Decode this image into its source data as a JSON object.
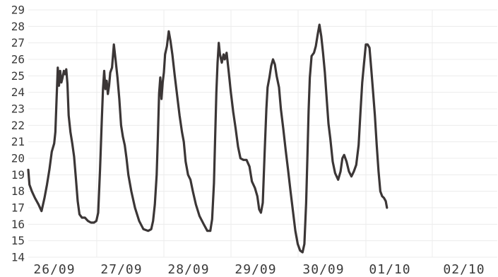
{
  "chart_data": {
    "type": "line",
    "title": "",
    "xlabel": "",
    "ylabel": "",
    "ylim": [
      14,
      29
    ],
    "yticks": [
      14,
      15,
      16,
      17,
      18,
      19,
      20,
      21,
      22,
      23,
      24,
      25,
      26,
      27,
      28,
      29
    ],
    "xticks": [
      "26/09",
      "27/09",
      "28/09",
      "29/09",
      "30/09",
      "01/10",
      "02/10"
    ],
    "xlim_days": [
      -0.39,
      7.39
    ],
    "grid": true,
    "color": "#3b3636",
    "series": [
      {
        "name": "",
        "points": [
          [
            -0.39,
            19.3
          ],
          [
            -0.37,
            18.4
          ],
          [
            -0.33,
            18.0
          ],
          [
            -0.28,
            17.6
          ],
          [
            -0.22,
            17.2
          ],
          [
            -0.17,
            16.8
          ],
          [
            -0.12,
            17.6
          ],
          [
            -0.08,
            18.4
          ],
          [
            -0.04,
            19.3
          ],
          [
            0.0,
            20.4
          ],
          [
            0.04,
            20.9
          ],
          [
            0.06,
            21.6
          ],
          [
            0.08,
            23.6
          ],
          [
            0.1,
            25.5
          ],
          [
            0.12,
            24.4
          ],
          [
            0.14,
            25.3
          ],
          [
            0.16,
            24.6
          ],
          [
            0.18,
            24.9
          ],
          [
            0.2,
            25.3
          ],
          [
            0.22,
            25.1
          ],
          [
            0.24,
            25.4
          ],
          [
            0.26,
            24.5
          ],
          [
            0.28,
            22.6
          ],
          [
            0.31,
            21.6
          ],
          [
            0.34,
            20.9
          ],
          [
            0.37,
            20.1
          ],
          [
            0.4,
            18.8
          ],
          [
            0.43,
            17.4
          ],
          [
            0.46,
            16.6
          ],
          [
            0.5,
            16.4
          ],
          [
            0.55,
            16.4
          ],
          [
            0.6,
            16.2
          ],
          [
            0.65,
            16.1
          ],
          [
            0.7,
            16.1
          ],
          [
            0.74,
            16.2
          ],
          [
            0.77,
            16.7
          ],
          [
            0.8,
            19.3
          ],
          [
            0.83,
            22.3
          ],
          [
            0.85,
            24.2
          ],
          [
            0.87,
            25.3
          ],
          [
            0.89,
            24.2
          ],
          [
            0.91,
            24.7
          ],
          [
            0.93,
            23.9
          ],
          [
            0.95,
            24.4
          ],
          [
            0.97,
            25.2
          ],
          [
            1.0,
            25.5
          ],
          [
            1.03,
            26.9
          ],
          [
            1.06,
            25.9
          ],
          [
            1.09,
            24.9
          ],
          [
            1.12,
            23.6
          ],
          [
            1.15,
            22.0
          ],
          [
            1.18,
            21.3
          ],
          [
            1.21,
            20.8
          ],
          [
            1.24,
            20.0
          ],
          [
            1.27,
            19.0
          ],
          [
            1.32,
            18.0
          ],
          [
            1.38,
            17.0
          ],
          [
            1.45,
            16.2
          ],
          [
            1.52,
            15.7
          ],
          [
            1.6,
            15.6
          ],
          [
            1.65,
            15.7
          ],
          [
            1.68,
            16.2
          ],
          [
            1.71,
            17.2
          ],
          [
            1.74,
            19.0
          ],
          [
            1.76,
            21.3
          ],
          [
            1.78,
            23.9
          ],
          [
            1.8,
            24.9
          ],
          [
            1.82,
            23.6
          ],
          [
            1.84,
            24.6
          ],
          [
            1.86,
            25.2
          ],
          [
            1.88,
            26.3
          ],
          [
            1.91,
            26.8
          ],
          [
            1.94,
            27.7
          ],
          [
            1.97,
            27.1
          ],
          [
            2.0,
            26.3
          ],
          [
            2.04,
            25.0
          ],
          [
            2.08,
            23.8
          ],
          [
            2.12,
            22.6
          ],
          [
            2.16,
            21.6
          ],
          [
            2.19,
            21.0
          ],
          [
            2.22,
            19.8
          ],
          [
            2.26,
            19.0
          ],
          [
            2.3,
            18.7
          ],
          [
            2.34,
            18.0
          ],
          [
            2.39,
            17.2
          ],
          [
            2.45,
            16.5
          ],
          [
            2.52,
            16.0
          ],
          [
            2.58,
            15.6
          ],
          [
            2.63,
            15.6
          ],
          [
            2.66,
            16.3
          ],
          [
            2.69,
            18.5
          ],
          [
            2.71,
            21.3
          ],
          [
            2.73,
            24.0
          ],
          [
            2.75,
            25.8
          ],
          [
            2.77,
            27.0
          ],
          [
            2.79,
            26.3
          ],
          [
            2.82,
            25.8
          ],
          [
            2.85,
            26.3
          ],
          [
            2.87,
            26.0
          ],
          [
            2.9,
            26.4
          ],
          [
            2.93,
            25.4
          ],
          [
            2.97,
            24.0
          ],
          [
            3.01,
            22.8
          ],
          [
            3.05,
            21.8
          ],
          [
            3.09,
            20.7
          ],
          [
            3.13,
            20.0
          ],
          [
            3.18,
            19.9
          ],
          [
            3.23,
            19.9
          ],
          [
            3.28,
            19.5
          ],
          [
            3.32,
            18.6
          ],
          [
            3.37,
            18.2
          ],
          [
            3.41,
            17.7
          ],
          [
            3.44,
            16.9
          ],
          [
            3.47,
            16.7
          ],
          [
            3.5,
            17.3
          ],
          [
            3.53,
            20.3
          ],
          [
            3.56,
            23.0
          ],
          [
            3.58,
            24.3
          ],
          [
            3.61,
            24.9
          ],
          [
            3.64,
            25.6
          ],
          [
            3.67,
            26.0
          ],
          [
            3.7,
            25.7
          ],
          [
            3.73,
            25.0
          ],
          [
            3.77,
            24.3
          ],
          [
            3.8,
            23.0
          ],
          [
            3.84,
            21.8
          ],
          [
            3.88,
            20.5
          ],
          [
            3.92,
            19.3
          ],
          [
            3.96,
            18.0
          ],
          [
            4.0,
            16.8
          ],
          [
            4.04,
            15.6
          ],
          [
            4.08,
            14.8
          ],
          [
            4.12,
            14.4
          ],
          [
            4.16,
            14.3
          ],
          [
            4.19,
            14.8
          ],
          [
            4.22,
            17.3
          ],
          [
            4.24,
            20.1
          ],
          [
            4.26,
            22.9
          ],
          [
            4.28,
            24.9
          ],
          [
            4.31,
            26.2
          ],
          [
            4.35,
            26.4
          ],
          [
            4.38,
            26.8
          ],
          [
            4.41,
            27.5
          ],
          [
            4.44,
            28.1
          ],
          [
            4.47,
            27.4
          ],
          [
            4.5,
            26.4
          ],
          [
            4.53,
            25.2
          ],
          [
            4.56,
            23.6
          ],
          [
            4.59,
            22.1
          ],
          [
            4.62,
            21.2
          ],
          [
            4.66,
            19.8
          ],
          [
            4.7,
            19.1
          ],
          [
            4.75,
            18.7
          ],
          [
            4.79,
            19.2
          ],
          [
            4.82,
            20.0
          ],
          [
            4.85,
            20.2
          ],
          [
            4.89,
            19.8
          ],
          [
            4.93,
            19.2
          ],
          [
            4.97,
            18.9
          ],
          [
            5.01,
            19.2
          ],
          [
            5.05,
            19.6
          ],
          [
            5.09,
            20.8
          ],
          [
            5.12,
            22.8
          ],
          [
            5.15,
            24.6
          ],
          [
            5.18,
            25.8
          ],
          [
            5.21,
            26.9
          ],
          [
            5.24,
            26.9
          ],
          [
            5.27,
            26.7
          ],
          [
            5.3,
            25.4
          ],
          [
            5.33,
            24.0
          ],
          [
            5.36,
            22.6
          ],
          [
            5.39,
            20.8
          ],
          [
            5.42,
            19.2
          ],
          [
            5.45,
            18.0
          ],
          [
            5.48,
            17.7
          ],
          [
            5.51,
            17.6
          ],
          [
            5.54,
            17.4
          ],
          [
            5.56,
            17.0
          ]
        ]
      }
    ]
  }
}
